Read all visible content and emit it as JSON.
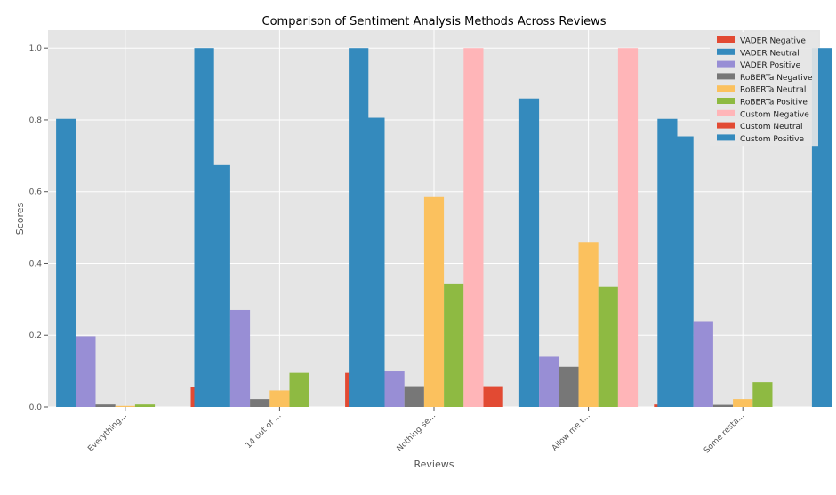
{
  "chart_data": {
    "type": "bar",
    "title": "Comparison of Sentiment Analysis Methods Across Reviews",
    "xlabel": "Reviews",
    "ylabel": "Scores",
    "ylim": [
      0,
      1.05
    ],
    "yticks": [
      "0.0",
      "0.2",
      "0.4",
      "0.6",
      "0.8",
      "1.0"
    ],
    "grid": true,
    "legend_position": "top-right",
    "categories": [
      "Everything...",
      "14 out of ...",
      "Nothing se...",
      "Allow me t...",
      "Some resta..."
    ],
    "series": [
      {
        "name": "VADER Negative",
        "color": "#E24A33",
        "values": [
          0.0,
          0.056,
          0.095,
          0.0,
          0.007
        ]
      },
      {
        "name": "VADER Neutral",
        "color": "#348ABD",
        "values": [
          0.803,
          0.674,
          0.806,
          0.86,
          0.754
        ]
      },
      {
        "name": "VADER Positive",
        "color": "#988ED5",
        "values": [
          0.197,
          0.27,
          0.099,
          0.14,
          0.239
        ]
      },
      {
        "name": "RoBERTa Negative",
        "color": "#777777",
        "values": [
          0.007,
          0.022,
          0.058,
          0.112,
          0.006
        ]
      },
      {
        "name": "RoBERTa Neutral",
        "color": "#FBC15E",
        "values": [
          0.003,
          0.046,
          0.585,
          0.46,
          0.022
        ]
      },
      {
        "name": "RoBERTa Positive",
        "color": "#8EBA42",
        "values": [
          0.007,
          0.095,
          0.342,
          0.335,
          0.069
        ]
      },
      {
        "name": "Custom Negative",
        "color": "#FFB5B8",
        "values": [
          0.0,
          0.0,
          1.0,
          1.0,
          0.0
        ]
      },
      {
        "name": "Custom Neutral",
        "color": "#E24A33",
        "values": [
          0.0,
          0.0,
          0.058,
          0.0,
          0.0
        ]
      },
      {
        "name": "Custom Positive",
        "color": "#348ABD",
        "values": [
          1.0,
          1.0,
          0.0,
          0.803,
          1.0
        ]
      }
    ]
  }
}
